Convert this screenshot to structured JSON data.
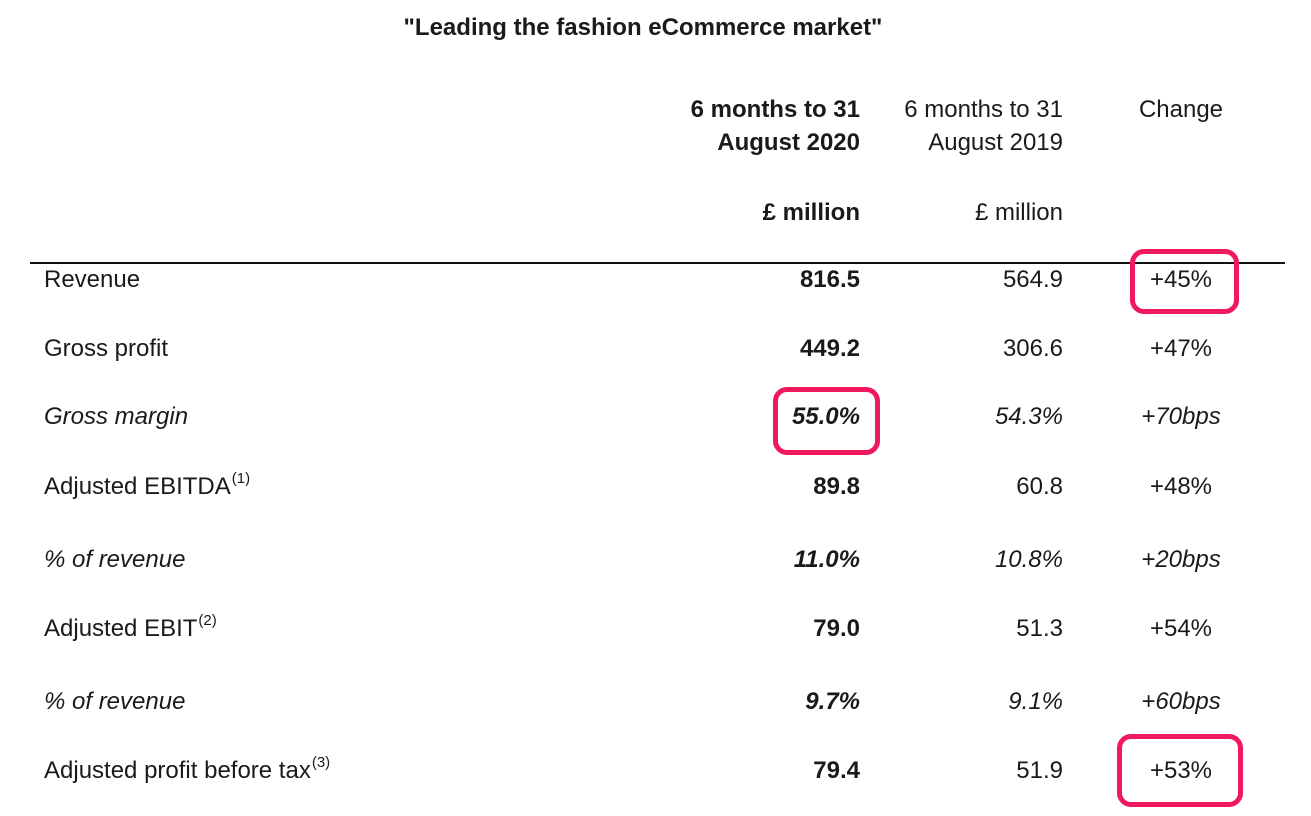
{
  "title": "\"Leading the fashion eCommerce market\"",
  "columns": {
    "current": {
      "line1": "6 months to 31",
      "line2": "August 2020",
      "unit": "£ million"
    },
    "prior": {
      "line1": "6 months to 31",
      "line2": "August 2019",
      "unit": "£ million"
    },
    "change": {
      "label": "Change"
    }
  },
  "rows": [
    {
      "label": "Revenue",
      "sup": "",
      "v2020": "816.5",
      "v2019": "564.9",
      "change": "+45%",
      "italic": false
    },
    {
      "label": "Gross profit",
      "sup": "",
      "v2020": "449.2",
      "v2019": "306.6",
      "change": "+47%",
      "italic": false
    },
    {
      "label": "Gross margin",
      "sup": "",
      "v2020": "55.0%",
      "v2019": "54.3%",
      "change": "+70bps",
      "italic": true
    },
    {
      "label": "Adjusted EBITDA",
      "sup": "(1)",
      "v2020": "89.8",
      "v2019": "60.8",
      "change": "+48%",
      "italic": false
    },
    {
      "label": "% of revenue",
      "sup": "",
      "v2020": "11.0%",
      "v2019": "10.8%",
      "change": "+20bps",
      "italic": true
    },
    {
      "label": "Adjusted EBIT",
      "sup": "(2)",
      "v2020": "79.0",
      "v2019": "51.3",
      "change": "+54%",
      "italic": false
    },
    {
      "label": "% of revenue",
      "sup": "",
      "v2020": "9.7%",
      "v2019": "9.1%",
      "change": "+60bps",
      "italic": true
    },
    {
      "label": "Adjusted profit before tax",
      "sup": "(3)",
      "v2020": "79.4",
      "v2019": "51.9",
      "change": "+53%",
      "italic": false
    }
  ],
  "highlight_color": "#f0195d"
}
